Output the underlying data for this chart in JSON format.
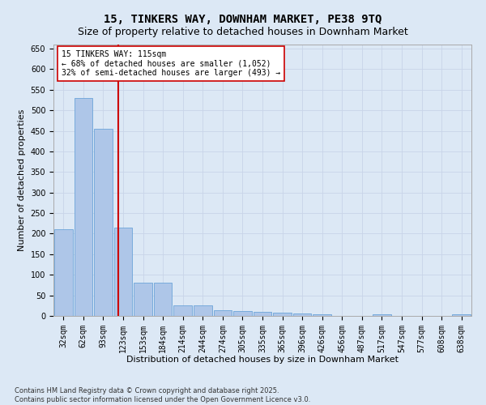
{
  "title": "15, TINKERS WAY, DOWNHAM MARKET, PE38 9TQ",
  "subtitle": "Size of property relative to detached houses in Downham Market",
  "xlabel": "Distribution of detached houses by size in Downham Market",
  "ylabel": "Number of detached properties",
  "bin_labels": [
    "32sqm",
    "62sqm",
    "93sqm",
    "123sqm",
    "153sqm",
    "184sqm",
    "214sqm",
    "244sqm",
    "274sqm",
    "305sqm",
    "335sqm",
    "365sqm",
    "396sqm",
    "426sqm",
    "456sqm",
    "487sqm",
    "517sqm",
    "547sqm",
    "577sqm",
    "608sqm",
    "638sqm"
  ],
  "bar_values": [
    210,
    530,
    455,
    215,
    80,
    80,
    25,
    25,
    14,
    12,
    10,
    7,
    5,
    3,
    0,
    0,
    3,
    0,
    0,
    0,
    4
  ],
  "bar_color": "#aec6e8",
  "bar_edgecolor": "#5b9bd5",
  "property_line_color": "#cc0000",
  "property_line_bin_index": 2.75,
  "annotation_text": "15 TINKERS WAY: 115sqm\n← 68% of detached houses are smaller (1,052)\n32% of semi-detached houses are larger (493) →",
  "annotation_box_color": "#cc0000",
  "annotation_text_color": "#000000",
  "ylim": [
    0,
    660
  ],
  "yticks": [
    0,
    50,
    100,
    150,
    200,
    250,
    300,
    350,
    400,
    450,
    500,
    550,
    600,
    650
  ],
  "grid_color": "#c8d4e8",
  "background_color": "#dce8f5",
  "footer": "Contains HM Land Registry data © Crown copyright and database right 2025.\nContains public sector information licensed under the Open Government Licence v3.0.",
  "title_fontsize": 10,
  "subtitle_fontsize": 9,
  "xlabel_fontsize": 8,
  "ylabel_fontsize": 8,
  "tick_fontsize": 7,
  "annotation_fontsize": 7,
  "footer_fontsize": 6
}
